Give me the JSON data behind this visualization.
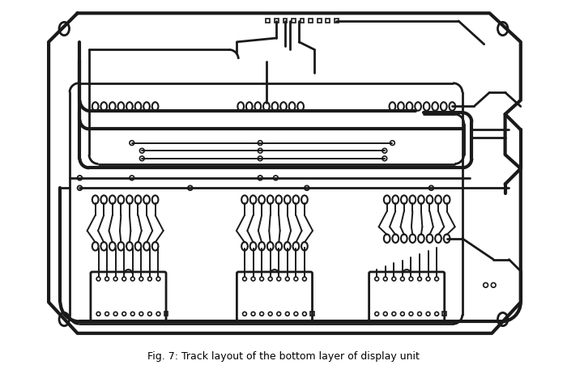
{
  "bg": "#ffffff",
  "tc": "#1a1a1a",
  "lw_thick": 3.0,
  "lw_med": 2.0,
  "lw_thin": 1.4,
  "lw_viathin": 1.2
}
